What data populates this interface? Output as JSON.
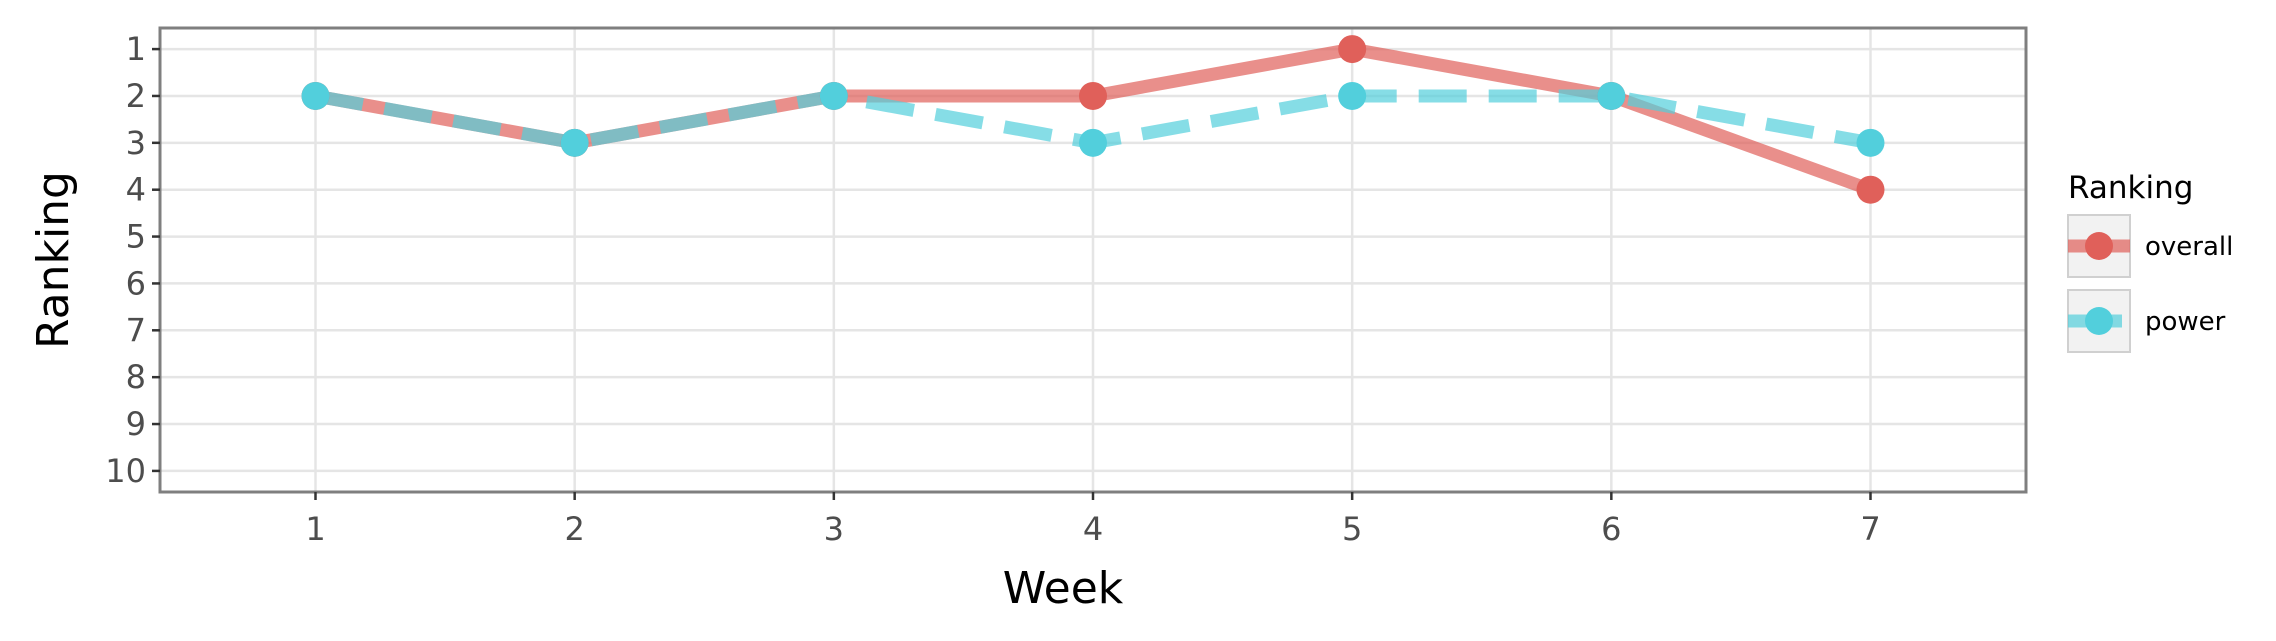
{
  "chart_data": {
    "type": "line",
    "xlabel": "Week",
    "ylabel": "Ranking",
    "x": [
      1,
      2,
      3,
      4,
      5,
      6,
      7
    ],
    "xticks": [
      "1",
      "2",
      "3",
      "4",
      "5",
      "6",
      "7"
    ],
    "xlim": [
      0.4,
      7.6
    ],
    "yticks": [
      "1",
      "2",
      "3",
      "4",
      "5",
      "6",
      "7",
      "8",
      "9",
      "10"
    ],
    "ylim": [
      10.45,
      0.55
    ],
    "y_reversed": true,
    "grid": true,
    "legend": {
      "title": "Ranking",
      "placement": "right"
    },
    "series": [
      {
        "name": "overall",
        "values": [
          2,
          3,
          2,
          2,
          1,
          2,
          4
        ],
        "color": "#e0605a",
        "line": "solid"
      },
      {
        "name": "power",
        "values": [
          2,
          3,
          2,
          3,
          2,
          2,
          3
        ],
        "color": "#52cfdc",
        "line": "dashed"
      }
    ]
  }
}
